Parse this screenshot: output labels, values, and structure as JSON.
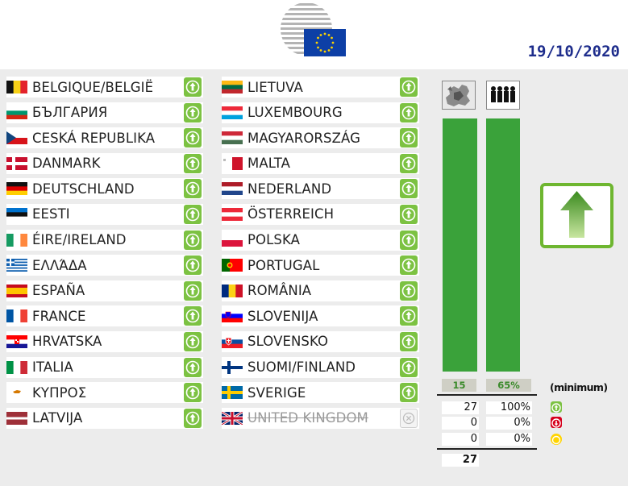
{
  "header": {
    "date": "19/10/2020"
  },
  "colors": {
    "vote_yes": "#7cc242",
    "vote_no": "#d6001c",
    "vote_abstain": "#ffd400",
    "bar": "#3aa23a",
    "date": "#1e2d8c"
  },
  "countries_left": [
    {
      "name": "BELGIQUE/BELGIË",
      "flag": "be",
      "vote": "yes"
    },
    {
      "name": "БЪЛГАРИЯ",
      "flag": "bg",
      "vote": "yes"
    },
    {
      "name": "CESKÁ REPUBLIKA",
      "flag": "cz",
      "vote": "yes"
    },
    {
      "name": "DANMARK",
      "flag": "dk",
      "vote": "yes"
    },
    {
      "name": "DEUTSCHLAND",
      "flag": "de",
      "vote": "yes"
    },
    {
      "name": "EESTI",
      "flag": "ee",
      "vote": "yes"
    },
    {
      "name": "ÉIRE/IRELAND",
      "flag": "ie",
      "vote": "yes"
    },
    {
      "name": "ΕΛΛΆΔΑ",
      "flag": "gr",
      "vote": "yes"
    },
    {
      "name": "ESPAÑA",
      "flag": "es",
      "vote": "yes"
    },
    {
      "name": "FRANCE",
      "flag": "fr",
      "vote": "yes"
    },
    {
      "name": "HRVATSKA",
      "flag": "hr",
      "vote": "yes"
    },
    {
      "name": "ITALIA",
      "flag": "it",
      "vote": "yes"
    },
    {
      "name": "ΚΥΠΡΟΣ",
      "flag": "cy",
      "vote": "yes"
    },
    {
      "name": "LATVIJA",
      "flag": "lv",
      "vote": "yes"
    }
  ],
  "countries_right": [
    {
      "name": "LIETUVA",
      "flag": "lt",
      "vote": "yes"
    },
    {
      "name": "LUXEMBOURG",
      "flag": "lu",
      "vote": "yes"
    },
    {
      "name": "MAGYARORSZÁG",
      "flag": "hu",
      "vote": "yes"
    },
    {
      "name": "MALTA",
      "flag": "mt",
      "vote": "yes"
    },
    {
      "name": "NEDERLAND",
      "flag": "nl",
      "vote": "yes"
    },
    {
      "name": "ÖSTERREICH",
      "flag": "at",
      "vote": "yes"
    },
    {
      "name": "POLSKA",
      "flag": "pl",
      "vote": "yes"
    },
    {
      "name": "PORTUGAL",
      "flag": "pt",
      "vote": "yes"
    },
    {
      "name": "ROMÂNIA",
      "flag": "ro",
      "vote": "yes"
    },
    {
      "name": "SLOVENIJA",
      "flag": "si",
      "vote": "yes"
    },
    {
      "name": "SLOVENSKO",
      "flag": "sk",
      "vote": "yes"
    },
    {
      "name": "SUOMI/FINLAND",
      "flag": "fi",
      "vote": "yes"
    },
    {
      "name": "SVERIGE",
      "flag": "se",
      "vote": "yes"
    },
    {
      "name": "UNITED KINGDOM",
      "flag": "gb",
      "vote": "none"
    }
  ],
  "tally": {
    "member_states_threshold": "15",
    "population_threshold": "65%",
    "minimum_label": "(minimum)",
    "member_states_fill": 1.0,
    "population_fill": 1.0,
    "rows": [
      {
        "states": "27",
        "population": "100%",
        "status": "yes"
      },
      {
        "states": "0",
        "population": "0%",
        "status": "no"
      },
      {
        "states": "0",
        "population": "0%",
        "status": "abstain"
      }
    ],
    "total": "27",
    "result": "adopted"
  }
}
